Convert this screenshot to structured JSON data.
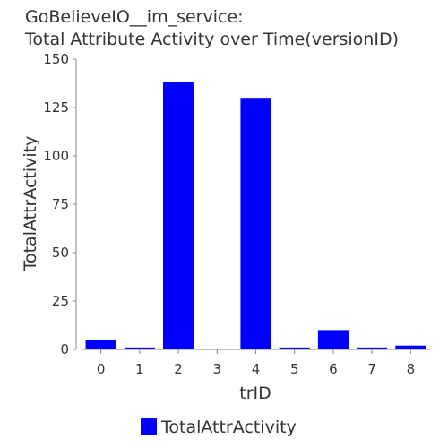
{
  "chart_data": {
    "type": "bar",
    "title_lines": [
      "GoBelieveIO__im_service:",
      "Total Attribute Activity over Time(versionID)"
    ],
    "xlabel": "trID",
    "ylabel": "TotalAttrActivity",
    "categories": [
      "0",
      "1",
      "2",
      "3",
      "4",
      "5",
      "6",
      "7",
      "8"
    ],
    "series": [
      {
        "name": "TotalAttrActivity",
        "values": [
          5,
          1,
          138,
          0,
          130,
          1,
          10,
          1,
          2
        ],
        "color": "#0000ff"
      }
    ],
    "ylim": [
      0,
      150
    ],
    "yticks": [
      0,
      25,
      50,
      75,
      100,
      125,
      150
    ],
    "grid": false,
    "legend_placement": "bottom-center"
  }
}
